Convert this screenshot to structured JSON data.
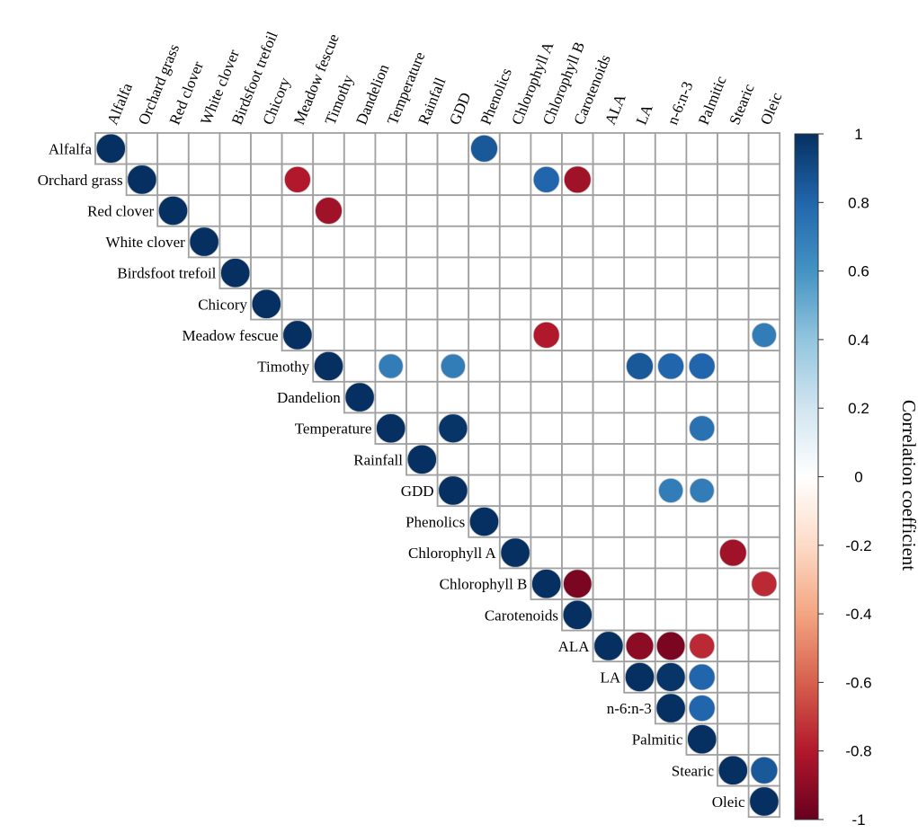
{
  "chart_data": {
    "type": "heatmap",
    "shape": "circle",
    "layout": "upper-triangle",
    "variables": [
      "Alfalfa",
      "Orchard grass",
      "Red clover",
      "White clover",
      "Birdsfoot trefoil",
      "Chicory",
      "Meadow fescue",
      "Timothy",
      "Dandelion",
      "Temperature",
      "Rainfall",
      "GDD",
      "Phenolics",
      "Chlorophyll A",
      "Chlorophyll B",
      "Carotenoids",
      "ALA",
      "LA",
      "n-6:n-3",
      "Palmitic",
      "Stearic",
      "Oleic"
    ],
    "cells": [
      {
        "row": "Alfalfa",
        "col": "Phenolics",
        "value": 0.85
      },
      {
        "row": "Orchard grass",
        "col": "Meadow fescue",
        "value": -0.8
      },
      {
        "row": "Orchard grass",
        "col": "Chlorophyll B",
        "value": 0.8
      },
      {
        "row": "Orchard grass",
        "col": "Carotenoids",
        "value": -0.85
      },
      {
        "row": "Red clover",
        "col": "Timothy",
        "value": -0.85
      },
      {
        "row": "Meadow fescue",
        "col": "Chlorophyll B",
        "value": -0.8
      },
      {
        "row": "Meadow fescue",
        "col": "Oleic",
        "value": 0.7
      },
      {
        "row": "Timothy",
        "col": "Temperature",
        "value": 0.7
      },
      {
        "row": "Timothy",
        "col": "GDD",
        "value": 0.7
      },
      {
        "row": "Timothy",
        "col": "LA",
        "value": 0.85
      },
      {
        "row": "Timothy",
        "col": "n-6:n-3",
        "value": 0.8
      },
      {
        "row": "Timothy",
        "col": "Palmitic",
        "value": 0.8
      },
      {
        "row": "Temperature",
        "col": "GDD",
        "value": 0.98
      },
      {
        "row": "Temperature",
        "col": "Palmitic",
        "value": 0.75
      },
      {
        "row": "GDD",
        "col": "n-6:n-3",
        "value": 0.7
      },
      {
        "row": "GDD",
        "col": "Palmitic",
        "value": 0.7
      },
      {
        "row": "Chlorophyll A",
        "col": "Stearic",
        "value": -0.85
      },
      {
        "row": "Chlorophyll B",
        "col": "Carotenoids",
        "value": -0.95
      },
      {
        "row": "Chlorophyll B",
        "col": "Oleic",
        "value": -0.75
      },
      {
        "row": "ALA",
        "col": "LA",
        "value": -0.9
      },
      {
        "row": "ALA",
        "col": "n-6:n-3",
        "value": -0.95
      },
      {
        "row": "ALA",
        "col": "Palmitic",
        "value": -0.75
      },
      {
        "row": "LA",
        "col": "n-6:n-3",
        "value": 0.98
      },
      {
        "row": "LA",
        "col": "Palmitic",
        "value": 0.8
      },
      {
        "row": "n-6:n-3",
        "col": "Palmitic",
        "value": 0.8
      },
      {
        "row": "Stearic",
        "col": "Oleic",
        "value": 0.85
      }
    ],
    "diagonal_value": 1,
    "colorbar": {
      "title": "Correlation coefficient",
      "range": [
        -1,
        1
      ],
      "ticks": [
        "1",
        "0.8",
        "0.6",
        "0.4",
        "0.2",
        "0",
        "-0.2",
        "-0.4",
        "-0.6",
        "-0.8",
        "-1"
      ],
      "colors": [
        "#67001f",
        "#b2182b",
        "#d6604d",
        "#f4a582",
        "#fddbc7",
        "#ffffff",
        "#d1e5f0",
        "#92c5de",
        "#4393c3",
        "#2166ac",
        "#053061"
      ]
    },
    "grid_color": "#a0a0a0"
  }
}
